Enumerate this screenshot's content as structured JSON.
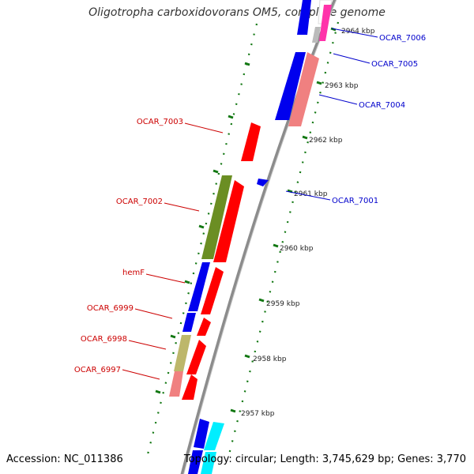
{
  "title": "Oligotropha carboxidovorans OM5, complete genome",
  "accession": "Accession: NC_011386",
  "summary": "Topology: circular; Length: 3,745,629 bp; Genes: 3,770",
  "ticks": [
    "2964 kbp",
    "2963 kbp",
    "2962 kbp",
    "2961 kbp",
    "2960 kbp",
    "2959 kbp",
    "2958 kbp",
    "2957 kbp"
  ],
  "genes_right": [
    "OCAR_7006",
    "OCAR_7005",
    "OCAR_7004",
    "OCAR_7001"
  ],
  "genes_left": [
    "OCAR_7003",
    "OCAR_7002",
    "hemF",
    "OCAR_6999",
    "OCAR_6998",
    "OCAR_6997"
  ],
  "colors": {
    "forward_label": "#0000cc",
    "reverse_label": "#cc0000",
    "backbone": "#888888",
    "tick": "#117711"
  }
}
